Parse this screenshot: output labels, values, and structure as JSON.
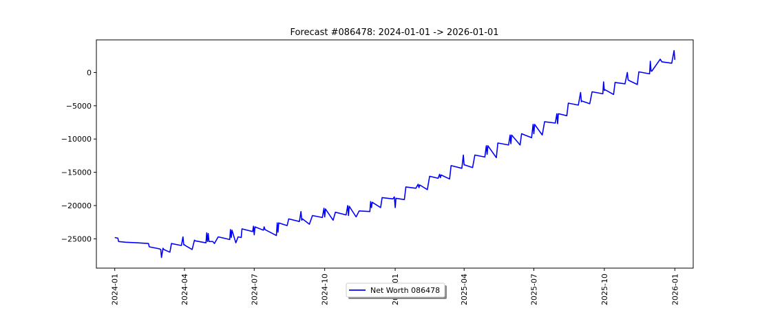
{
  "chart_data": {
    "type": "line",
    "title": "Forecast #086478: 2024-01-01 -> 2026-01-01",
    "xlabel": "",
    "ylabel": "",
    "xlim": [
      "2023-12-08",
      "2026-01-25"
    ],
    "ylim": [
      -29400,
      4900
    ],
    "x_ticks": [
      "2024-01",
      "2024-04",
      "2024-07",
      "2024-10",
      "2025-01",
      "2025-04",
      "2025-07",
      "2025-10",
      "2026-01"
    ],
    "y_ticks": [
      0,
      -5000,
      -10000,
      -15000,
      -20000,
      -25000
    ],
    "legend_position": "bottom-center",
    "grid": false,
    "series": [
      {
        "name": "Net Worth 086478",
        "color": "#0000ff",
        "x": [
          "2024-01-01",
          "2024-01-05",
          "2024-01-06",
          "2024-01-15",
          "2024-01-31",
          "2024-02-14",
          "2024-02-15",
          "2024-02-28",
          "2024-03-01",
          "2024-03-02",
          "2024-03-04",
          "2024-03-05",
          "2024-03-13",
          "2024-03-15",
          "2024-03-28",
          "2024-03-30",
          "2024-03-31",
          "2024-04-01",
          "2024-04-02",
          "2024-04-11",
          "2024-04-14",
          "2024-04-15",
          "2024-04-29",
          "2024-04-30",
          "2024-05-01",
          "2024-05-02",
          "2024-05-03",
          "2024-05-08",
          "2024-05-10",
          "2024-05-15",
          "2024-05-30",
          "2024-05-31",
          "2024-06-01",
          "2024-06-02",
          "2024-06-07",
          "2024-06-10",
          "2024-06-14",
          "2024-06-15",
          "2024-06-29",
          "2024-06-30",
          "2024-07-01",
          "2024-07-02",
          "2024-07-13",
          "2024-07-14",
          "2024-07-15",
          "2024-07-30",
          "2024-07-31",
          "2024-08-01",
          "2024-08-02",
          "2024-08-13",
          "2024-08-15",
          "2024-08-29",
          "2024-08-31",
          "2024-09-01",
          "2024-09-02",
          "2024-09-11",
          "2024-09-15",
          "2024-09-28",
          "2024-09-30",
          "2024-10-01",
          "2024-10-02",
          "2024-10-12",
          "2024-10-15",
          "2024-10-29",
          "2024-10-31",
          "2024-11-01",
          "2024-11-02",
          "2024-11-11",
          "2024-11-15",
          "2024-11-29",
          "2024-11-30",
          "2024-12-01",
          "2024-12-02",
          "2024-12-13",
          "2024-12-15",
          "2024-12-29",
          "2024-12-31",
          "2025-01-01",
          "2025-01-02",
          "2025-01-13",
          "2025-01-15",
          "2025-01-28",
          "2025-01-31",
          "2025-02-01",
          "2025-02-02",
          "2025-02-12",
          "2025-02-15",
          "2025-02-26",
          "2025-02-28",
          "2025-03-01",
          "2025-03-02",
          "2025-03-13",
          "2025-03-15",
          "2025-03-29",
          "2025-03-31",
          "2025-04-01",
          "2025-04-02",
          "2025-04-12",
          "2025-04-15",
          "2025-04-28",
          "2025-04-30",
          "2025-05-01",
          "2025-05-02",
          "2025-05-13",
          "2025-05-15",
          "2025-05-29",
          "2025-05-31",
          "2025-06-01",
          "2025-06-02",
          "2025-06-13",
          "2025-06-15",
          "2025-06-28",
          "2025-06-30",
          "2025-07-01",
          "2025-07-02",
          "2025-07-12",
          "2025-07-15",
          "2025-07-29",
          "2025-07-31",
          "2025-08-01",
          "2025-08-02",
          "2025-08-13",
          "2025-08-15",
          "2025-08-28",
          "2025-08-31",
          "2025-09-01",
          "2025-09-02",
          "2025-09-12",
          "2025-09-15",
          "2025-09-29",
          "2025-09-30",
          "2025-10-01",
          "2025-10-02",
          "2025-10-13",
          "2025-10-15",
          "2025-10-28",
          "2025-10-31",
          "2025-11-01",
          "2025-11-02",
          "2025-11-13",
          "2025-11-15",
          "2025-11-29",
          "2025-11-30",
          "2025-12-01",
          "2025-12-02",
          "2025-12-13",
          "2025-12-15",
          "2025-12-28",
          "2025-12-31",
          "2026-01-01"
        ],
        "values": [
          -24800,
          -24900,
          -25400,
          -25500,
          -25600,
          -25700,
          -26200,
          -26500,
          -26600,
          -27800,
          -26400,
          -26600,
          -27000,
          -25700,
          -26000,
          -24700,
          -25900,
          -25900,
          -26000,
          -26600,
          -25200,
          -25300,
          -25600,
          -24100,
          -25400,
          -24200,
          -25400,
          -25400,
          -25700,
          -24700,
          -25100,
          -23600,
          -24800,
          -23700,
          -25600,
          -24700,
          -24800,
          -23500,
          -23900,
          -23100,
          -24400,
          -23200,
          -23700,
          -23200,
          -23600,
          -24500,
          -22600,
          -24000,
          -22600,
          -23000,
          -22000,
          -22400,
          -20900,
          -22200,
          -22000,
          -22800,
          -21500,
          -21800,
          -20400,
          -21700,
          -20500,
          -22200,
          -21000,
          -21400,
          -20000,
          -21500,
          -20100,
          -21700,
          -20800,
          -20900,
          -19400,
          -20300,
          -19500,
          -20300,
          -18800,
          -19000,
          -18700,
          -20300,
          -18900,
          -19100,
          -17200,
          -17400,
          -16800,
          -17300,
          -16900,
          -17600,
          -15600,
          -15900,
          -15300,
          -15800,
          -15400,
          -16000,
          -14000,
          -14400,
          -12400,
          -13900,
          -13900,
          -14300,
          -12400,
          -12700,
          -11000,
          -12300,
          -11000,
          -12800,
          -10600,
          -10900,
          -9400,
          -10700,
          -9400,
          -10900,
          -9200,
          -9800,
          -7800,
          -9200,
          -7800,
          -9400,
          -7400,
          -7600,
          -6200,
          -7700,
          -6200,
          -6500,
          -4600,
          -4900,
          -3000,
          -4400,
          -4300,
          -4700,
          -2900,
          -3200,
          -1400,
          -2700,
          -2600,
          -3300,
          -1500,
          -1700,
          0,
          -1100,
          -1200,
          -1800,
          100,
          -200,
          1700,
          200,
          200,
          2000,
          1600,
          1400,
          3300,
          1900
        ]
      }
    ]
  }
}
